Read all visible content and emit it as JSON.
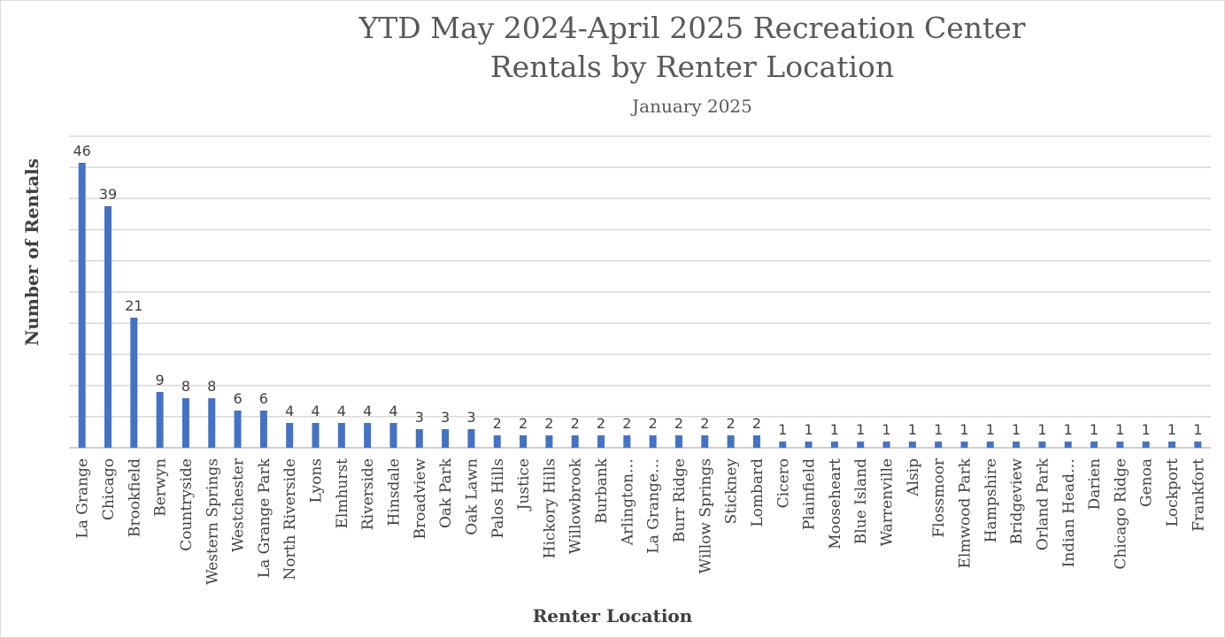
{
  "chart_data": {
    "type": "bar",
    "title_line1": "YTD May 2024-April 2025 Recreation Center",
    "title_line2": "Rentals by Renter Location",
    "subtitle": "January 2025",
    "xlabel": "Renter Location",
    "ylabel": "Number of Rentals",
    "grid": true,
    "bar_color": "#4472c4",
    "categories": [
      "La Grange",
      "Chicago",
      "Brookfield",
      "Berwyn",
      "Countryside",
      "Western Springs",
      "Westchester",
      "La Grange Park",
      "North Riverside",
      "Lyons",
      "Elmhurst",
      "Riverside",
      "Hinsdale",
      "Broadview",
      "Oak Park",
      "Oak Lawn",
      "Palos Hills",
      "Justice",
      "Hickory Hills",
      "Willowbrook",
      "Burbank",
      "Arlington…",
      "La Grange…",
      "Burr Ridge",
      "Willow Springs",
      "Stickney",
      "Lombard",
      "Cicero",
      "Plainfield",
      "Mooseheart",
      "Blue Island",
      "Warrenville",
      "Alsip",
      "Flossmoor",
      "Elmwood Park",
      "Hampshire",
      "Bridgeview",
      "Orland Park",
      "Indian Head…",
      "Darien",
      "Chicago Ridge",
      "Genoa",
      "Lockport",
      "Frankfort"
    ],
    "values": [
      46,
      39,
      21,
      9,
      8,
      8,
      6,
      6,
      4,
      4,
      4,
      4,
      4,
      3,
      3,
      3,
      2,
      2,
      2,
      2,
      2,
      2,
      2,
      2,
      2,
      2,
      2,
      1,
      1,
      1,
      1,
      1,
      1,
      1,
      1,
      1,
      1,
      1,
      1,
      1,
      1,
      1,
      1,
      1
    ]
  }
}
